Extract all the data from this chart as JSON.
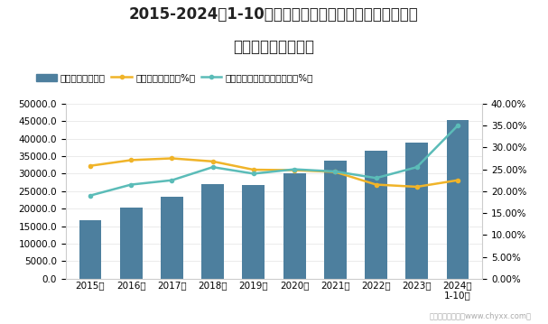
{
  "title_line1": "2015-2024年1-10月计算机、通信和其他电子设备制造业",
  "title_line2": "企业应收账款统计图",
  "years": [
    "2015年",
    "2016年",
    "2017年",
    "2018年",
    "2019年",
    "2020年",
    "2021年",
    "2022年",
    "2023年",
    "2024年\n1-10月"
  ],
  "bar_values": [
    16800,
    20300,
    23400,
    27000,
    26800,
    30100,
    33800,
    36600,
    38900,
    45200
  ],
  "line1_values": [
    25.8,
    27.1,
    27.5,
    26.8,
    24.9,
    24.8,
    24.4,
    21.5,
    21.0,
    22.5
  ],
  "line2_values": [
    19.0,
    21.5,
    22.5,
    25.5,
    24.0,
    25.0,
    24.5,
    23.0,
    25.5,
    35.0
  ],
  "bar_color": "#4d7f9e",
  "line1_color": "#f0b429",
  "line2_color": "#5bbcb8",
  "left_ylim": [
    0,
    50000
  ],
  "left_yticks": [
    0,
    5000,
    10000,
    15000,
    20000,
    25000,
    30000,
    35000,
    40000,
    45000,
    50000
  ],
  "right_ylim": [
    0,
    40
  ],
  "right_yticks": [
    0,
    5,
    10,
    15,
    20,
    25,
    30,
    35,
    40
  ],
  "legend_labels": [
    "应收账款（亿元）",
    "应收账款百分比（%）",
    "应收账款占营业收入的比重（%）"
  ],
  "watermark": "制图：智研咍询（www.chyxx.com）",
  "title_fontsize": 12,
  "tick_fontsize": 7.5,
  "legend_fontsize": 7.5,
  "background_color": "#ffffff"
}
